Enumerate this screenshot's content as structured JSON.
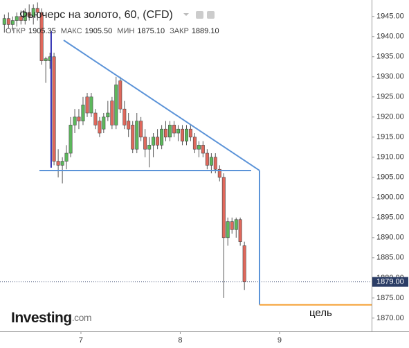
{
  "chart_data": {
    "type": "candlestick",
    "title": "Фьючерс на золото, 60, (CFD)",
    "ohlc_legend": [
      {
        "label": "ОТКР",
        "value": "1905.35"
      },
      {
        "label": "МАКС",
        "value": "1905.50"
      },
      {
        "label": "МИН",
        "value": "1875.10"
      },
      {
        "label": "ЗАКР",
        "value": "1889.10"
      }
    ],
    "up_color": "#5cb85c",
    "down_color": "#e0685c",
    "x": [
      6.229,
      6.271,
      6.313,
      6.354,
      6.396,
      6.438,
      6.479,
      6.521,
      6.563,
      6.604,
      6.646,
      6.688,
      6.729,
      6.771,
      6.813,
      6.854,
      6.896,
      6.938,
      6.979,
      7.021,
      7.063,
      7.104,
      7.146,
      7.188,
      7.229,
      7.271,
      7.313,
      7.354,
      7.396,
      7.438,
      7.479,
      7.521,
      7.563,
      7.604,
      7.646,
      7.688,
      7.729,
      7.771,
      7.813,
      7.854,
      7.896,
      7.938,
      7.979,
      8.021,
      8.063,
      8.104,
      8.146,
      8.188,
      8.229,
      8.271,
      8.313,
      8.354,
      8.396,
      8.438,
      8.479,
      8.521,
      8.563,
      8.604,
      8.646
    ],
    "open": [
      1943,
      1944.5,
      1943,
      1944,
      1945,
      1944,
      1946,
      1945,
      1947,
      1946,
      1934,
      1934,
      1935,
      1909,
      1908,
      1909,
      1911,
      1918,
      1920,
      1919,
      1925,
      1921,
      1921,
      1919,
      1917,
      1920,
      1924,
      1918,
      1929,
      1922,
      1919,
      1918,
      1912,
      1919,
      1915,
      1912,
      1913,
      1915,
      1913,
      1917,
      1915,
      1918,
      1916,
      1917,
      1914,
      1917,
      1915,
      1912,
      1913,
      1911,
      1908,
      1910,
      1907,
      1905,
      1890,
      1894,
      1892,
      1894.5,
      1888
    ],
    "high": [
      1945.5,
      1946,
      1945,
      1946,
      1946.5,
      1947,
      1948,
      1948,
      1948.5,
      1947,
      1935,
      1936,
      1936,
      1912,
      1910,
      1913,
      1920,
      1922,
      1922,
      1925,
      1926,
      1926,
      1922,
      1920,
      1921,
      1924,
      1925,
      1930,
      1930,
      1924,
      1921,
      1919,
      1921,
      1920,
      1917,
      1915,
      1916,
      1917,
      1918,
      1919,
      1919,
      1919,
      1918,
      1918,
      1918,
      1918,
      1916,
      1914,
      1914,
      1912,
      1911,
      1911,
      1908,
      1906,
      1895,
      1895,
      1895,
      1895,
      1889
    ],
    "low": [
      1941,
      1942,
      1941.5,
      1942.5,
      1943,
      1943,
      1944,
      1943,
      1944,
      1933,
      1928.5,
      1932,
      1908,
      1905,
      1903.5,
      1907,
      1910,
      1916,
      1917,
      1918,
      1920,
      1920,
      1917,
      1915,
      1916,
      1919,
      1917,
      1917,
      1921,
      1917,
      1915,
      1911,
      1911,
      1914,
      1910,
      1907.5,
      1910,
      1912,
      1912,
      1914,
      1914,
      1915,
      1914,
      1913,
      1913,
      1914,
      1911,
      1910,
      1910,
      1907,
      1906,
      1906,
      1904,
      1875,
      1888,
      1891,
      1890,
      1888,
      1877
    ],
    "close": [
      1944.5,
      1943,
      1944,
      1945,
      1944,
      1946,
      1945,
      1947,
      1946,
      1934,
      1934.5,
      1935,
      1909,
      1908,
      1909,
      1911,
      1918,
      1920,
      1919,
      1923,
      1921,
      1925,
      1918,
      1916,
      1920,
      1921,
      1918,
      1928,
      1922,
      1918,
      1917,
      1912,
      1919,
      1915,
      1912,
      1913,
      1915,
      1913,
      1917,
      1915,
      1918,
      1916,
      1917,
      1914,
      1917,
      1915,
      1912,
      1913,
      1911,
      1908,
      1910,
      1907,
      1905,
      1890,
      1894,
      1892,
      1894.5,
      1889,
      1879
    ],
    "lines": [
      {
        "color": "#5b93d8",
        "x": [
          6.826,
          8.798
        ],
        "y": [
          1939.1,
          1906.7
        ]
      },
      {
        "color": "#5b93d8",
        "x": [
          6.582,
          8.714
        ],
        "y": [
          1906.7,
          1906.7
        ]
      },
      {
        "color": "#5b93d8",
        "x": [
          8.798,
          8.798
        ],
        "y": [
          1906.7,
          1873.3
        ]
      },
      {
        "color": "#2a2ab0",
        "x": [
          6.7,
          6.7
        ],
        "y": [
          1941.4,
          1907.4
        ]
      },
      {
        "color": "#f5a035",
        "x": [
          8.798,
          9.927
        ],
        "y": [
          1873.3,
          1873.3
        ]
      }
    ],
    "target_label": "цель",
    "last_price": {
      "value": 1879,
      "label": "1879.00"
    },
    "xlim": [
      6.185,
      9.927
    ],
    "ylim": [
      1866.7,
      1949.1
    ],
    "xticks": [
      7,
      8,
      9
    ],
    "yticks": [
      {
        "value": 1870,
        "label": "1870.00"
      },
      {
        "value": 1875,
        "label": "1875.00"
      },
      {
        "value": 1880,
        "label": "1880.00"
      },
      {
        "value": 1885,
        "label": "1885.00"
      },
      {
        "value": 1890,
        "label": "1890.00"
      },
      {
        "value": 1895,
        "label": "1895.00"
      },
      {
        "value": 1900,
        "label": "1900.00"
      },
      {
        "value": 1905,
        "label": "1905.00"
      },
      {
        "value": 1910,
        "label": "1910.00"
      },
      {
        "value": 1915,
        "label": "1915.00"
      },
      {
        "value": 1920,
        "label": "1920.00"
      },
      {
        "value": 1925,
        "label": "1925.00"
      },
      {
        "value": 1930,
        "label": "1930.00"
      },
      {
        "value": 1935,
        "label": "1935.00"
      },
      {
        "value": 1940,
        "label": "1940.00"
      },
      {
        "value": 1945,
        "label": "1945.00"
      }
    ],
    "watermark": "Investing",
    "watermark_suffix": ".com"
  }
}
